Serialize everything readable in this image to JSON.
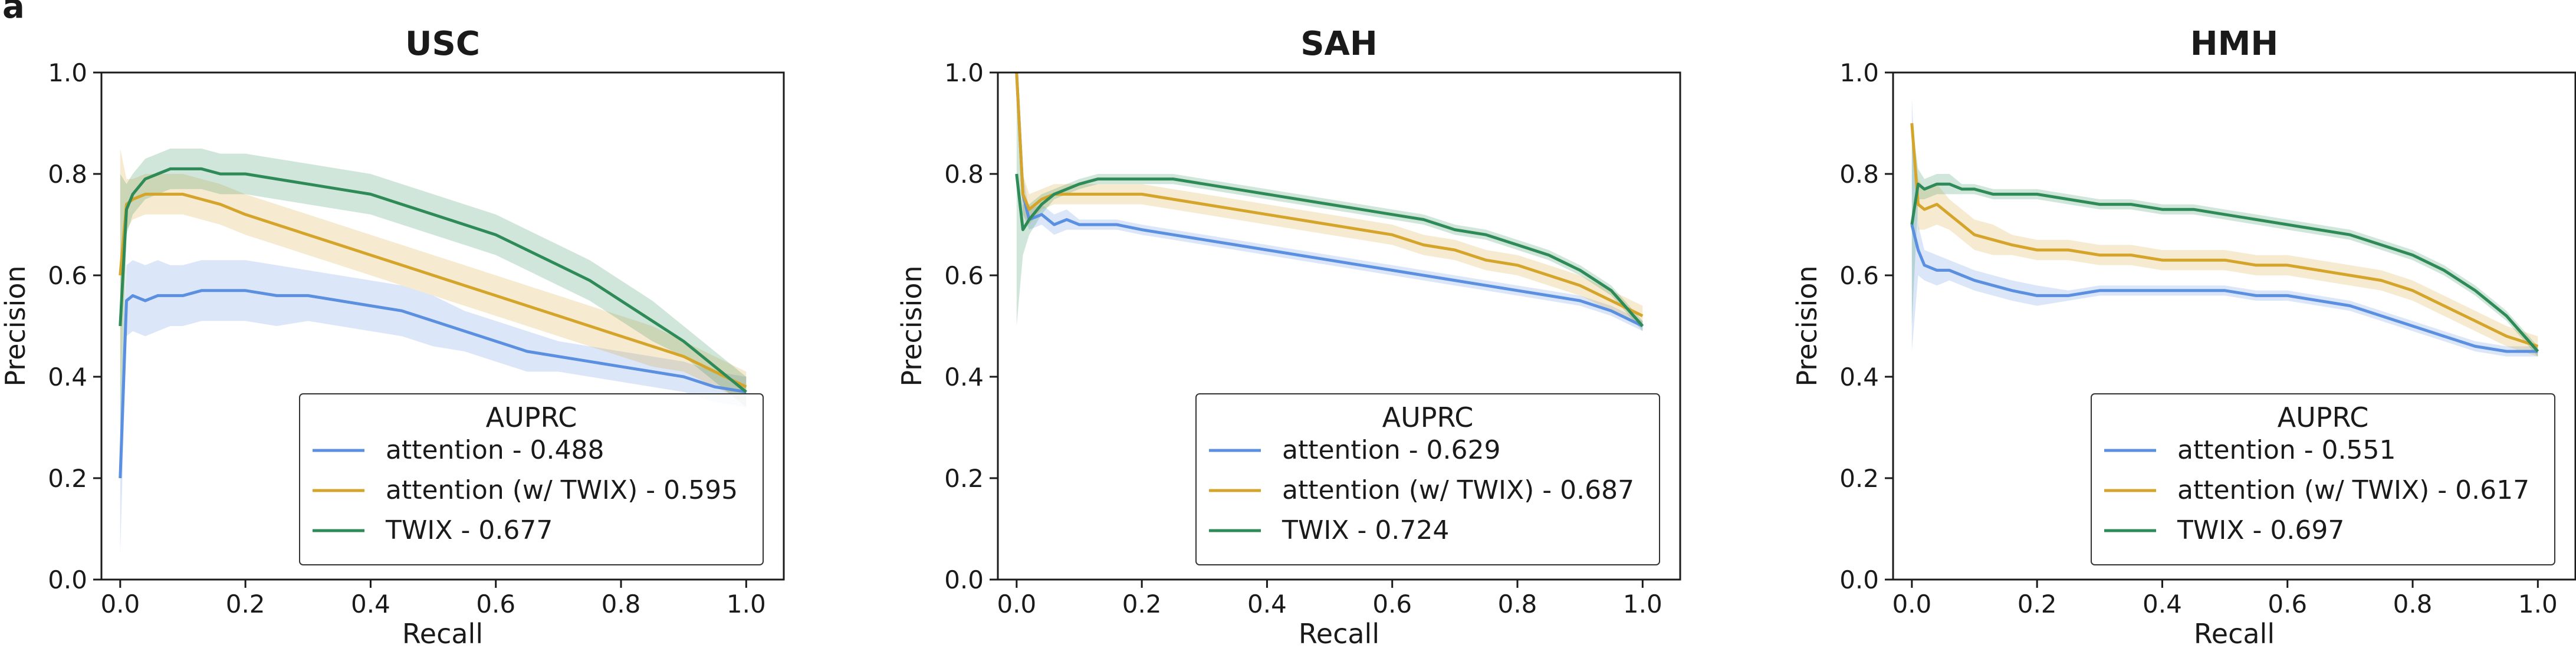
{
  "figure": {
    "panel_letter": "a"
  },
  "colors": {
    "attention": "#5b8fe0",
    "attention_twix": "#d4a52a",
    "twix": "#2e8b57",
    "axis": "#1a1a1a",
    "text": "#1a1a1a"
  },
  "chart_data": [
    {
      "type": "line",
      "title": "USC",
      "xlabel": "Recall",
      "ylabel": "Precision",
      "xlim": [
        -0.03,
        1.06
      ],
      "ylim": [
        0.0,
        1.0
      ],
      "xticks": [
        "0.0",
        "0.2",
        "0.4",
        "0.6",
        "0.8",
        "1.0"
      ],
      "yticks": [
        "0.0",
        "0.2",
        "0.4",
        "0.6",
        "0.8",
        "1.0"
      ],
      "legend": {
        "title": "AUPRC",
        "position": "lower-right"
      },
      "x": [
        0.0,
        0.01,
        0.02,
        0.04,
        0.06,
        0.08,
        0.1,
        0.13,
        0.16,
        0.2,
        0.25,
        0.3,
        0.35,
        0.4,
        0.45,
        0.5,
        0.55,
        0.6,
        0.65,
        0.7,
        0.75,
        0.8,
        0.85,
        0.9,
        0.95,
        1.0
      ],
      "series": [
        {
          "key": "attention",
          "name": "attention - 0.488",
          "values": [
            0.2,
            0.55,
            0.56,
            0.55,
            0.56,
            0.56,
            0.56,
            0.57,
            0.57,
            0.57,
            0.56,
            0.56,
            0.55,
            0.54,
            0.53,
            0.51,
            0.49,
            0.47,
            0.45,
            0.44,
            0.43,
            0.42,
            0.41,
            0.4,
            0.38,
            0.37
          ],
          "band": [
            0.15,
            0.07,
            0.07,
            0.07,
            0.07,
            0.06,
            0.06,
            0.06,
            0.06,
            0.06,
            0.06,
            0.05,
            0.05,
            0.05,
            0.05,
            0.05,
            0.04,
            0.04,
            0.04,
            0.03,
            0.03,
            0.03,
            0.03,
            0.03,
            0.03,
            0.03
          ]
        },
        {
          "key": "attention_twix",
          "name": "attention (w/ TWIX) - 0.595",
          "values": [
            0.6,
            0.74,
            0.75,
            0.76,
            0.76,
            0.76,
            0.76,
            0.75,
            0.74,
            0.72,
            0.7,
            0.68,
            0.66,
            0.64,
            0.62,
            0.6,
            0.58,
            0.56,
            0.54,
            0.52,
            0.5,
            0.48,
            0.46,
            0.44,
            0.41,
            0.38
          ],
          "band": [
            0.25,
            0.05,
            0.04,
            0.04,
            0.04,
            0.04,
            0.04,
            0.04,
            0.04,
            0.04,
            0.04,
            0.04,
            0.04,
            0.04,
            0.04,
            0.04,
            0.04,
            0.04,
            0.04,
            0.04,
            0.04,
            0.04,
            0.04,
            0.03,
            0.03,
            0.03
          ]
        },
        {
          "key": "twix",
          "name": "TWIX - 0.677",
          "values": [
            0.5,
            0.73,
            0.76,
            0.79,
            0.8,
            0.81,
            0.81,
            0.81,
            0.8,
            0.8,
            0.79,
            0.78,
            0.77,
            0.76,
            0.74,
            0.72,
            0.7,
            0.68,
            0.65,
            0.62,
            0.59,
            0.55,
            0.51,
            0.47,
            0.42,
            0.37
          ],
          "band": [
            0.3,
            0.05,
            0.04,
            0.04,
            0.04,
            0.04,
            0.04,
            0.04,
            0.04,
            0.04,
            0.04,
            0.04,
            0.04,
            0.04,
            0.04,
            0.04,
            0.04,
            0.04,
            0.04,
            0.04,
            0.04,
            0.04,
            0.04,
            0.03,
            0.03,
            0.03
          ]
        }
      ]
    },
    {
      "type": "line",
      "title": "SAH",
      "xlabel": "Recall",
      "ylabel": "Precision",
      "xlim": [
        -0.03,
        1.06
      ],
      "ylim": [
        0.0,
        1.0
      ],
      "xticks": [
        "0.0",
        "0.2",
        "0.4",
        "0.6",
        "0.8",
        "1.0"
      ],
      "yticks": [
        "0.0",
        "0.2",
        "0.4",
        "0.6",
        "0.8",
        "1.0"
      ],
      "legend": {
        "title": "AUPRC",
        "position": "lower-right"
      },
      "x": [
        0.0,
        0.01,
        0.02,
        0.04,
        0.06,
        0.08,
        0.1,
        0.13,
        0.16,
        0.2,
        0.25,
        0.3,
        0.35,
        0.4,
        0.45,
        0.5,
        0.55,
        0.6,
        0.65,
        0.7,
        0.75,
        0.8,
        0.85,
        0.9,
        0.95,
        1.0
      ],
      "series": [
        {
          "key": "attention",
          "name": "attention - 0.629",
          "values": [
            1.0,
            0.76,
            0.71,
            0.72,
            0.7,
            0.71,
            0.7,
            0.7,
            0.7,
            0.69,
            0.68,
            0.67,
            0.66,
            0.65,
            0.64,
            0.63,
            0.62,
            0.61,
            0.6,
            0.59,
            0.58,
            0.57,
            0.56,
            0.55,
            0.53,
            0.5
          ],
          "band": [
            0.0,
            0.04,
            0.02,
            0.02,
            0.02,
            0.02,
            0.01,
            0.01,
            0.01,
            0.01,
            0.01,
            0.01,
            0.01,
            0.01,
            0.01,
            0.01,
            0.01,
            0.01,
            0.01,
            0.01,
            0.01,
            0.01,
            0.01,
            0.01,
            0.01,
            0.01
          ]
        },
        {
          "key": "attention_twix",
          "name": "attention (w/ TWIX) - 0.687",
          "values": [
            1.0,
            0.76,
            0.73,
            0.75,
            0.76,
            0.76,
            0.76,
            0.76,
            0.76,
            0.76,
            0.75,
            0.74,
            0.73,
            0.72,
            0.71,
            0.7,
            0.69,
            0.68,
            0.66,
            0.65,
            0.63,
            0.62,
            0.6,
            0.58,
            0.55,
            0.52
          ],
          "band": [
            0.0,
            0.04,
            0.03,
            0.02,
            0.02,
            0.02,
            0.02,
            0.02,
            0.02,
            0.02,
            0.02,
            0.02,
            0.02,
            0.02,
            0.02,
            0.02,
            0.02,
            0.02,
            0.02,
            0.02,
            0.02,
            0.02,
            0.02,
            0.02,
            0.02,
            0.02
          ]
        },
        {
          "key": "twix",
          "name": "TWIX - 0.724",
          "values": [
            0.8,
            0.69,
            0.71,
            0.74,
            0.76,
            0.77,
            0.78,
            0.79,
            0.79,
            0.79,
            0.79,
            0.78,
            0.77,
            0.76,
            0.75,
            0.74,
            0.73,
            0.72,
            0.71,
            0.69,
            0.68,
            0.66,
            0.64,
            0.61,
            0.57,
            0.5
          ],
          "band": [
            0.3,
            0.05,
            0.03,
            0.02,
            0.01,
            0.01,
            0.01,
            0.01,
            0.01,
            0.01,
            0.01,
            0.01,
            0.01,
            0.01,
            0.01,
            0.01,
            0.01,
            0.01,
            0.01,
            0.01,
            0.01,
            0.01,
            0.01,
            0.01,
            0.01,
            0.01
          ]
        }
      ]
    },
    {
      "type": "line",
      "title": "HMH",
      "xlabel": "Recall",
      "ylabel": "Precision",
      "xlim": [
        -0.03,
        1.06
      ],
      "ylim": [
        0.0,
        1.0
      ],
      "xticks": [
        "0.0",
        "0.2",
        "0.4",
        "0.6",
        "0.8",
        "1.0"
      ],
      "yticks": [
        "0.0",
        "0.2",
        "0.4",
        "0.6",
        "0.8",
        "1.0"
      ],
      "legend": {
        "title": "AUPRC",
        "position": "lower-right"
      },
      "x": [
        0.0,
        0.01,
        0.02,
        0.04,
        0.06,
        0.08,
        0.1,
        0.13,
        0.16,
        0.2,
        0.25,
        0.3,
        0.35,
        0.4,
        0.45,
        0.5,
        0.55,
        0.6,
        0.65,
        0.7,
        0.75,
        0.8,
        0.85,
        0.9,
        0.95,
        1.0
      ],
      "series": [
        {
          "key": "attention",
          "name": "attention - 0.551",
          "values": [
            0.7,
            0.65,
            0.62,
            0.61,
            0.61,
            0.6,
            0.59,
            0.58,
            0.57,
            0.56,
            0.56,
            0.57,
            0.57,
            0.57,
            0.57,
            0.57,
            0.56,
            0.56,
            0.55,
            0.54,
            0.52,
            0.5,
            0.48,
            0.46,
            0.45,
            0.45
          ],
          "band": [
            0.25,
            0.05,
            0.03,
            0.03,
            0.02,
            0.02,
            0.02,
            0.02,
            0.02,
            0.02,
            0.01,
            0.01,
            0.01,
            0.01,
            0.01,
            0.01,
            0.01,
            0.01,
            0.01,
            0.01,
            0.01,
            0.01,
            0.01,
            0.01,
            0.01,
            0.01
          ]
        },
        {
          "key": "attention_twix",
          "name": "attention (w/ TWIX) - 0.617",
          "values": [
            0.9,
            0.74,
            0.73,
            0.74,
            0.72,
            0.7,
            0.68,
            0.67,
            0.66,
            0.65,
            0.65,
            0.64,
            0.64,
            0.63,
            0.63,
            0.63,
            0.62,
            0.62,
            0.61,
            0.6,
            0.59,
            0.57,
            0.54,
            0.51,
            0.48,
            0.46
          ],
          "band": [
            0.0,
            0.05,
            0.04,
            0.04,
            0.03,
            0.03,
            0.03,
            0.03,
            0.02,
            0.02,
            0.02,
            0.02,
            0.02,
            0.02,
            0.02,
            0.02,
            0.02,
            0.02,
            0.02,
            0.02,
            0.02,
            0.02,
            0.02,
            0.02,
            0.02,
            0.02
          ]
        },
        {
          "key": "twix",
          "name": "TWIX - 0.697",
          "values": [
            0.7,
            0.78,
            0.77,
            0.78,
            0.78,
            0.77,
            0.77,
            0.76,
            0.76,
            0.76,
            0.75,
            0.74,
            0.74,
            0.73,
            0.73,
            0.72,
            0.71,
            0.7,
            0.69,
            0.68,
            0.66,
            0.64,
            0.61,
            0.57,
            0.52,
            0.45
          ],
          "band": [
            0.2,
            0.03,
            0.02,
            0.02,
            0.02,
            0.01,
            0.01,
            0.01,
            0.01,
            0.01,
            0.01,
            0.01,
            0.01,
            0.01,
            0.01,
            0.01,
            0.01,
            0.01,
            0.01,
            0.01,
            0.01,
            0.01,
            0.01,
            0.01,
            0.01,
            0.01
          ]
        }
      ]
    }
  ]
}
